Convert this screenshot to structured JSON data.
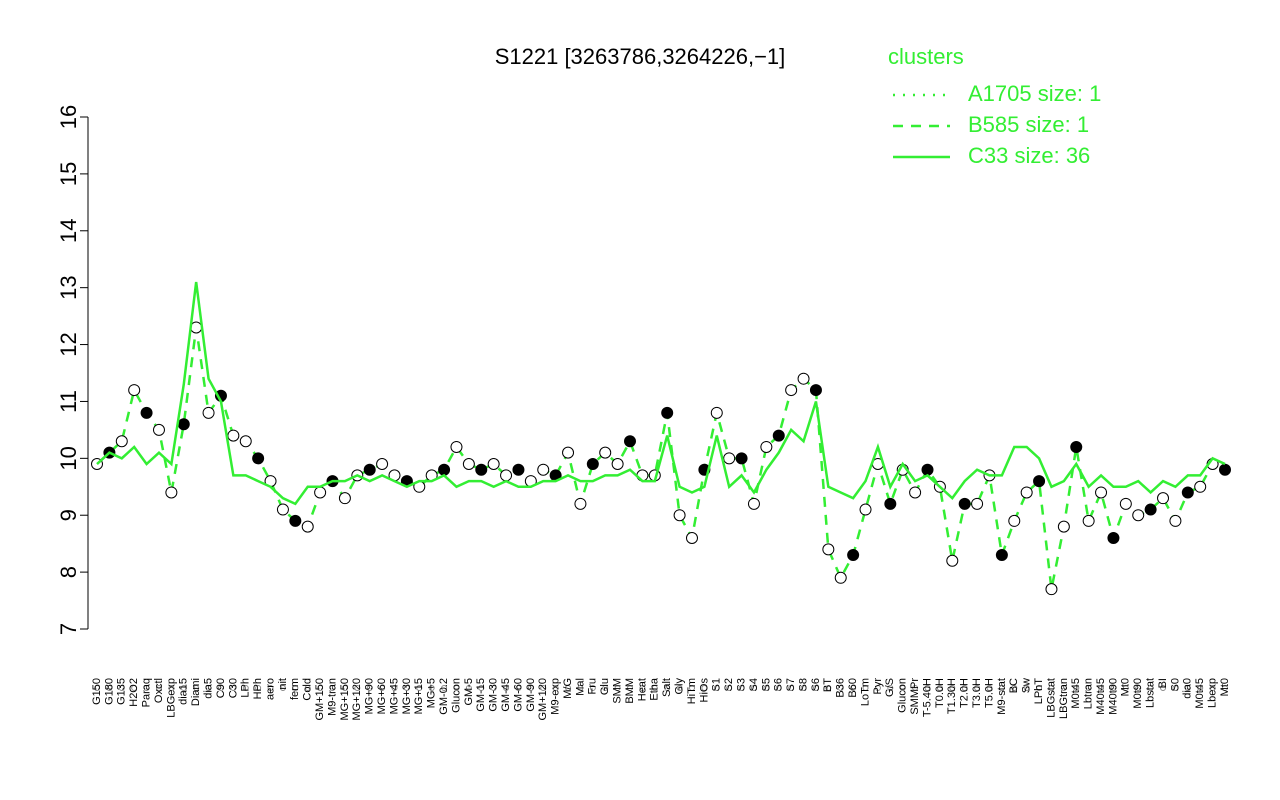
{
  "chart_data": {
    "type": "line",
    "title": "S1221 [3263786,3264226,−1]",
    "legend_title": "clusters",
    "legend_corner": "top-right",
    "color": "#33ee33",
    "categories": [
      "G150",
      "G180",
      "G135",
      "H2O2",
      "Paraq",
      "Oxctl",
      "LBGexp",
      "dia15",
      "Diami",
      "dia5",
      "C90",
      "C30",
      "LPh",
      "HPh",
      "aero",
      "nit",
      "ferm",
      "Cold",
      "GM+150",
      "M9-tran",
      "MG+150",
      "MG+120",
      "MG+90",
      "MG+60",
      "MG+45",
      "MG+30",
      "MG+15",
      "MG+5",
      "GM-0.2",
      "Glucon",
      "GM-5",
      "GM-15",
      "GM-30",
      "GM-45",
      "GM-60",
      "GM-90",
      "GM+120",
      "M9-exp",
      "M/G",
      "Mal",
      "Fru",
      "Glu",
      "SMM",
      "BMM",
      "Heat",
      "Etha",
      "Salt",
      "Gly",
      "HiTm",
      "HiOs",
      "S1",
      "S2",
      "S3",
      "S4",
      "S5",
      "S6",
      "S7",
      "S8",
      "S6",
      "BT",
      "B36",
      "B60",
      "LoTm",
      "Pyr",
      "G/S",
      "Glucon",
      "SMMPr",
      "T-5.40H",
      "T0.0H",
      "T1.30H",
      "T2.0H",
      "T3.0H",
      "T5.0H",
      "M9-stat",
      "BC",
      "Sw",
      "LPhT",
      "LBGstat",
      "LBGtran",
      "M0t45",
      "Lbtran",
      "M40t45",
      "M40t90",
      "Mt0",
      "M0t90",
      "Lbstat",
      "BI",
      "S0",
      "dia0",
      "M0t45",
      "Lbexp",
      "Mt0"
    ],
    "series": [
      {
        "name": "A1705 size: 1",
        "style": "dotted"
      },
      {
        "name": "B585 size: 1",
        "style": "dashed",
        "points": true,
        "values": [
          9.9,
          10.1,
          10.3,
          11.2,
          10.8,
          10.5,
          9.4,
          10.6,
          12.3,
          10.8,
          11.1,
          10.4,
          10.3,
          10.0,
          9.6,
          9.1,
          8.9,
          8.8,
          9.4,
          9.6,
          9.3,
          9.7,
          9.8,
          9.9,
          9.7,
          9.6,
          9.5,
          9.7,
          9.8,
          10.2,
          9.9,
          9.8,
          9.9,
          9.7,
          9.8,
          9.6,
          9.8,
          9.7,
          10.1,
          9.2,
          9.9,
          10.1,
          9.9,
          10.3,
          9.7,
          9.7,
          10.8,
          9.0,
          8.6,
          9.8,
          10.8,
          10.0,
          10.0,
          9.2,
          10.2,
          10.4,
          11.2,
          11.4,
          11.2,
          8.4,
          7.9,
          8.3,
          9.1,
          9.9,
          9.2,
          9.8,
          9.4,
          9.8,
          9.5,
          8.2,
          9.2,
          9.2,
          9.7,
          8.3,
          8.9,
          9.4,
          9.6,
          7.7,
          8.8,
          10.2,
          8.9,
          9.4,
          8.6,
          9.2,
          9.0,
          9.1,
          9.3,
          8.9,
          9.4,
          9.5,
          9.9,
          9.8
        ]
      },
      {
        "name": "C33 size: 36",
        "style": "solid",
        "values": [
          9.9,
          10.1,
          10.0,
          10.2,
          9.9,
          10.1,
          9.9,
          11.3,
          13.1,
          11.4,
          11.0,
          9.7,
          9.7,
          9.6,
          9.5,
          9.3,
          9.2,
          9.5,
          9.5,
          9.6,
          9.6,
          9.7,
          9.6,
          9.7,
          9.6,
          9.5,
          9.6,
          9.6,
          9.7,
          9.5,
          9.6,
          9.6,
          9.5,
          9.6,
          9.5,
          9.5,
          9.6,
          9.6,
          9.7,
          9.6,
          9.6,
          9.7,
          9.7,
          9.8,
          9.6,
          9.6,
          10.4,
          9.5,
          9.4,
          9.5,
          10.4,
          9.5,
          9.7,
          9.4,
          9.8,
          10.1,
          10.5,
          10.3,
          11.0,
          9.5,
          9.4,
          9.3,
          9.6,
          10.2,
          9.5,
          9.9,
          9.6,
          9.7,
          9.5,
          9.3,
          9.6,
          9.8,
          9.7,
          9.7,
          10.2,
          10.2,
          10.0,
          9.5,
          9.6,
          9.9,
          9.5,
          9.7,
          9.5,
          9.5,
          9.6,
          9.4,
          9.6,
          9.5,
          9.7,
          9.7,
          10.0,
          9.9
        ]
      }
    ],
    "ylim": [
      7,
      16
    ],
    "yticks": [
      7,
      8,
      9,
      10,
      11,
      12,
      13,
      14,
      15,
      16
    ]
  }
}
